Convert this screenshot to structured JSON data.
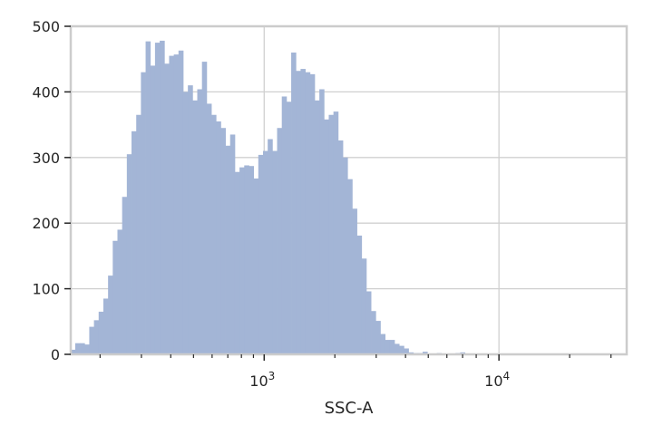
{
  "chart_data": {
    "type": "bar",
    "xlabel": "SSC-A",
    "ylabel": "",
    "x_scale": "log",
    "xlim": [
      150,
      35000
    ],
    "ylim": [
      0,
      500
    ],
    "grid": true,
    "bar_color": "#a3b5d6",
    "y_ticks": [
      0,
      100,
      200,
      300,
      400,
      500
    ],
    "y_tick_labels": [
      "0",
      "100",
      "200",
      "300",
      "400",
      "500"
    ],
    "x_major_ticks": [
      {
        "value": 1000,
        "base": "10",
        "exp": "3"
      },
      {
        "value": 10000,
        "base": "10",
        "exp": "4"
      }
    ],
    "bins": {
      "log10_start": 2.175,
      "log10_width": 0.02,
      "values": [
        7,
        17,
        17,
        15,
        42,
        52,
        65,
        85,
        120,
        173,
        190,
        240,
        305,
        340,
        365,
        430,
        477,
        440,
        475,
        478,
        443,
        455,
        457,
        463,
        400,
        410,
        387,
        404,
        446,
        382,
        365,
        355,
        345,
        318,
        335,
        278,
        285,
        288,
        287,
        268,
        304,
        310,
        328,
        310,
        345,
        393,
        385,
        460,
        432,
        435,
        430,
        427,
        387,
        404,
        358,
        365,
        370,
        326,
        300,
        267,
        222,
        181,
        146,
        96,
        66,
        51,
        31,
        22,
        22,
        16,
        13,
        9,
        3,
        2,
        2,
        4,
        1,
        1,
        2,
        1,
        1,
        1,
        2,
        3,
        1,
        1,
        0,
        0,
        0,
        0,
        0,
        1,
        1,
        0,
        0
      ]
    }
  }
}
